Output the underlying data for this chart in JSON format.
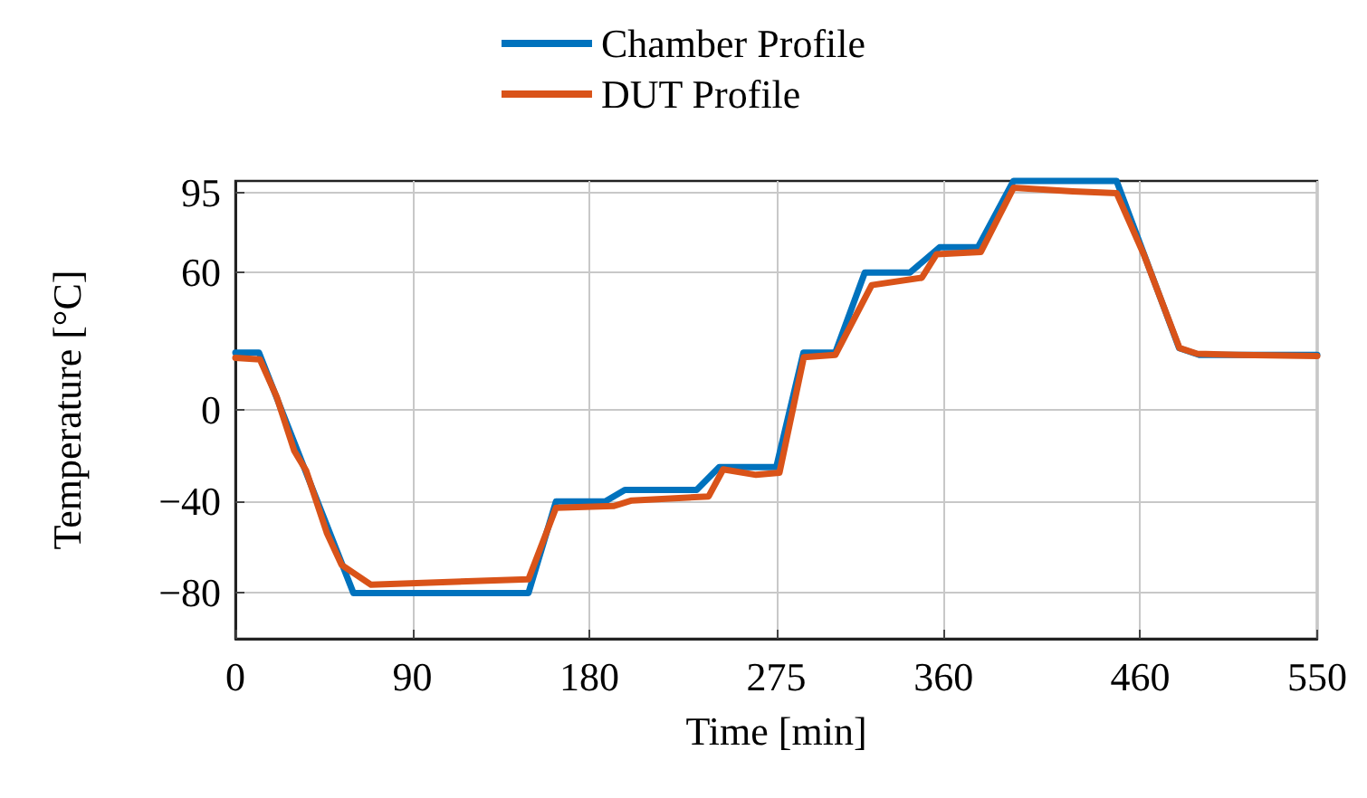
{
  "chart_data": {
    "type": "line",
    "xlabel": "Time [min]",
    "ylabel": "Temperature [°C]",
    "xlim": [
      0,
      550
    ],
    "xticks": [
      0,
      90,
      180,
      275,
      360,
      460,
      550
    ],
    "ylim": [
      -100,
      100
    ],
    "yticks": [
      -80,
      -40,
      0,
      60,
      95
    ],
    "grid": true,
    "legend": "top",
    "marker": "none",
    "line_style": "solid",
    "series": [
      {
        "name": "Chamber Profile",
        "color": "#0072bd",
        "x": [
          0,
          12,
          60,
          149,
          163,
          188,
          198,
          234.5,
          246,
          275,
          288.8,
          305,
          320,
          343,
          358,
          377.5,
          395.6,
          448,
          479.8,
          490,
          550
        ],
        "values": [
          25,
          25,
          -80,
          -80,
          -40,
          -40,
          -35,
          -35,
          -25,
          -25,
          25,
          25,
          60,
          60,
          71,
          71,
          100,
          100,
          27,
          24,
          24
        ]
      },
      {
        "name": "DUT Profile",
        "color": "#d95319",
        "x": [
          0,
          12.5,
          21,
          30,
          36,
          46.6,
          54,
          69,
          149,
          163,
          192.5,
          201.5,
          240.6,
          248,
          264.7,
          276.6,
          289,
          305,
          323.5,
          349,
          356.5,
          379,
          395.6,
          425.7,
          448,
          461.8,
          480,
          489,
          510,
          550
        ],
        "values": [
          22.7,
          22,
          5.7,
          -18,
          -26.6,
          -54,
          -67.7,
          -76.4,
          -74,
          -42.8,
          -42,
          -39.6,
          -37.8,
          -26,
          -28.4,
          -27.5,
          23,
          24,
          54.5,
          57.7,
          68,
          69,
          97,
          95.5,
          94.7,
          68,
          27,
          24.5,
          24,
          23.5
        ]
      }
    ]
  }
}
